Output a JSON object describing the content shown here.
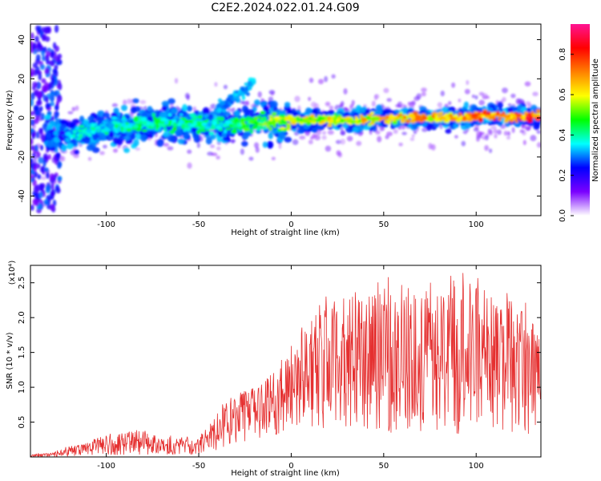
{
  "title": "C2E2.2024.022.01.24.G09",
  "colors": {
    "snr_line": "#e53030",
    "axis": "#000000"
  },
  "chart_data": [
    {
      "type": "heatmap",
      "xlabel": "Height of straight line (km)",
      "ylabel": "Frequency (Hz)",
      "xlim": [
        -141,
        135
      ],
      "ylim": [
        -50,
        48
      ],
      "xticks": [
        -100,
        -50,
        0,
        50,
        100
      ],
      "yticks": [
        -40,
        -20,
        0,
        20,
        40
      ],
      "colorbar": {
        "label": "Normalized spectral amplitude",
        "range": [
          0,
          0.95
        ],
        "ticks": [
          "0.0",
          "0.2",
          "0.4",
          "0.6",
          "0.8"
        ],
        "colormap": [
          "#ffffff",
          "#7a00ff",
          "#0000ff",
          "#00ffff",
          "#00ff00",
          "#ffff00",
          "#ff8000",
          "#ff0000",
          "#ff1493"
        ]
      },
      "ridge": {
        "x": [
          -140,
          -130,
          -120,
          -110,
          -100,
          -90,
          -80,
          -70,
          -60,
          -50,
          -40,
          -30,
          -20,
          -10,
          0,
          10,
          20,
          30,
          40,
          50,
          60,
          70,
          80,
          90,
          100,
          110,
          120,
          130,
          135
        ],
        "y": [
          -10,
          -10,
          -9,
          -7,
          -5,
          -4,
          -3,
          -2,
          -3,
          -3,
          -4,
          -3,
          -2,
          -2,
          -1,
          -1,
          -1,
          -1,
          -1,
          0,
          0,
          0,
          0,
          0,
          1,
          1,
          1,
          1,
          1
        ],
        "amplitude": [
          0.05,
          0.1,
          0.35,
          0.4,
          0.4,
          0.42,
          0.45,
          0.45,
          0.45,
          0.42,
          0.4,
          0.45,
          0.5,
          0.55,
          0.6,
          0.6,
          0.62,
          0.6,
          0.65,
          0.65,
          0.68,
          0.7,
          0.7,
          0.72,
          0.75,
          0.78,
          0.8,
          0.82,
          0.8
        ]
      },
      "branch": {
        "x": [
          -40,
          -35,
          -30,
          -25,
          -22,
          -20
        ],
        "y": [
          5,
          8,
          11,
          14,
          17,
          20
        ]
      }
    },
    {
      "type": "line",
      "xlabel": "Height of straight line (km)",
      "ylabel": "SNR (10 * v/v)",
      "y_multiplier": "(x10⁴)",
      "xlim": [
        -141,
        135
      ],
      "ylim": [
        0,
        2.75
      ],
      "xticks": [
        -100,
        -50,
        0,
        50,
        100
      ],
      "yticks": [
        "0.5",
        "1.0",
        "1.5",
        "2.0",
        "2.5"
      ],
      "envelope": {
        "x": [
          -141,
          -130,
          -125,
          -120,
          -110,
          -100,
          -90,
          -80,
          -70,
          -60,
          -50,
          -45,
          -40,
          -35,
          -30,
          -20,
          -10,
          0,
          10,
          20,
          30,
          40,
          50,
          60,
          70,
          80,
          90,
          100,
          110,
          120,
          130,
          135
        ],
        "upper": [
          0.05,
          0.05,
          0.1,
          0.15,
          0.2,
          0.3,
          0.35,
          0.35,
          0.3,
          0.28,
          0.25,
          0.45,
          0.6,
          0.8,
          0.9,
          1.0,
          1.2,
          1.6,
          2.0,
          2.2,
          2.3,
          2.3,
          2.35,
          2.4,
          2.3,
          2.3,
          2.5,
          2.45,
          2.3,
          2.2,
          2.0,
          1.8
        ],
        "lower": [
          0.0,
          0.0,
          0.0,
          0.0,
          0.02,
          0.02,
          0.03,
          0.03,
          0.03,
          0.03,
          0.03,
          0.05,
          0.1,
          0.15,
          0.2,
          0.25,
          0.3,
          0.35,
          0.4,
          0.4,
          0.4,
          0.35,
          0.35,
          0.35,
          0.35,
          0.35,
          0.3,
          0.3,
          0.3,
          0.3,
          0.3,
          0.3
        ]
      }
    }
  ]
}
